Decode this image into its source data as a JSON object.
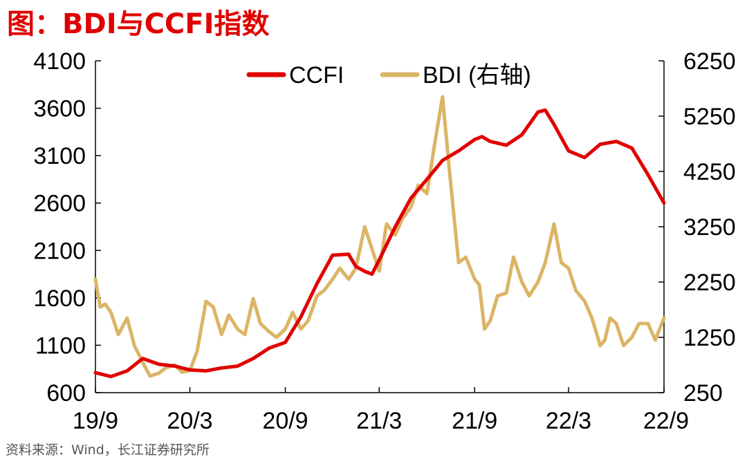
{
  "title": "图：BDI与CCFI指数",
  "source": "资料来源：Wind，长江证券研究所",
  "colors": {
    "ccfi": "#e00000",
    "bdi": "#dbb566",
    "title": "#e00000",
    "axis": "#000000"
  },
  "chart_data": {
    "type": "line",
    "title": "图：BDI与CCFI指数",
    "legend_position": "top",
    "grid": false,
    "x_ticks": [
      "19/9",
      "20/3",
      "20/9",
      "21/3",
      "21/9",
      "22/3",
      "22/9"
    ],
    "xlim": [
      "2019-09",
      "2022-09"
    ],
    "y_left": {
      "lim": [
        600,
        4100
      ],
      "ticks": [
        600,
        1100,
        1600,
        2100,
        2600,
        3100,
        3600,
        4100
      ]
    },
    "y_right": {
      "lim": [
        250,
        6250
      ],
      "ticks": [
        250,
        1250,
        2250,
        3250,
        4250,
        5250,
        6250
      ]
    },
    "series": [
      {
        "name": "CCFI",
        "axis": "left",
        "x": [
          "2019-09-01",
          "2019-10-01",
          "2019-11-01",
          "2019-12-01",
          "2020-01-01",
          "2020-02-01",
          "2020-03-01",
          "2020-04-01",
          "2020-05-01",
          "2020-06-01",
          "2020-07-01",
          "2020-08-01",
          "2020-09-01",
          "2020-10-01",
          "2020-11-01",
          "2020-12-01",
          "2021-01-01",
          "2021-01-15",
          "2021-02-01",
          "2021-02-15",
          "2021-03-01",
          "2021-04-01",
          "2021-05-01",
          "2021-06-01",
          "2021-07-01",
          "2021-08-01",
          "2021-09-01",
          "2021-09-15",
          "2021-10-01",
          "2021-11-01",
          "2021-12-01",
          "2022-01-01",
          "2022-01-15",
          "2022-02-01",
          "2022-03-01",
          "2022-04-01",
          "2022-05-01",
          "2022-06-01",
          "2022-07-01",
          "2022-08-01",
          "2022-09-01"
        ],
        "y": [
          810,
          770,
          830,
          960,
          900,
          880,
          840,
          830,
          860,
          880,
          960,
          1070,
          1130,
          1400,
          1750,
          2050,
          2060,
          1930,
          1880,
          1850,
          2000,
          2350,
          2650,
          2850,
          3050,
          3150,
          3270,
          3300,
          3250,
          3210,
          3320,
          3560,
          3580,
          3430,
          3150,
          3080,
          3220,
          3250,
          3180,
          2900,
          2600
        ]
      },
      {
        "name": "BDI (右轴)",
        "axis": "right",
        "x": [
          "2019-09-01",
          "2019-09-10",
          "2019-09-20",
          "2019-10-01",
          "2019-10-15",
          "2019-11-01",
          "2019-11-15",
          "2019-12-01",
          "2019-12-15",
          "2020-01-01",
          "2020-01-15",
          "2020-02-01",
          "2020-02-15",
          "2020-03-01",
          "2020-03-15",
          "2020-04-01",
          "2020-04-15",
          "2020-05-01",
          "2020-05-15",
          "2020-06-01",
          "2020-06-15",
          "2020-07-01",
          "2020-07-15",
          "2020-08-01",
          "2020-08-15",
          "2020-09-01",
          "2020-09-15",
          "2020-10-01",
          "2020-10-15",
          "2020-11-01",
          "2020-11-15",
          "2020-12-01",
          "2020-12-15",
          "2021-01-01",
          "2021-01-15",
          "2021-02-01",
          "2021-02-15",
          "2021-03-01",
          "2021-03-15",
          "2021-04-01",
          "2021-04-15",
          "2021-05-01",
          "2021-05-15",
          "2021-06-01",
          "2021-06-15",
          "2021-07-01",
          "2021-07-15",
          "2021-08-01",
          "2021-08-15",
          "2021-09-01",
          "2021-09-10",
          "2021-09-20",
          "2021-10-01",
          "2021-10-15",
          "2021-11-01",
          "2021-11-15",
          "2021-12-01",
          "2021-12-15",
          "2022-01-01",
          "2022-01-15",
          "2022-02-01",
          "2022-02-15",
          "2022-03-01",
          "2022-03-15",
          "2022-04-01",
          "2022-04-15",
          "2022-05-01",
          "2022-05-10",
          "2022-05-20",
          "2022-06-01",
          "2022-06-15",
          "2022-07-01",
          "2022-07-15",
          "2022-08-01",
          "2022-08-15",
          "2022-09-01"
        ],
        "y": [
          2300,
          1800,
          1850,
          1700,
          1300,
          1600,
          1100,
          800,
          550,
          600,
          700,
          750,
          620,
          650,
          1000,
          1900,
          1800,
          1300,
          1650,
          1400,
          1300,
          1950,
          1500,
          1350,
          1250,
          1400,
          1700,
          1400,
          1550,
          2000,
          2100,
          2300,
          2500,
          2300,
          2500,
          3250,
          2850,
          2450,
          3300,
          3100,
          3400,
          3600,
          4000,
          3850,
          4700,
          5600,
          4200,
          2600,
          2700,
          2300,
          2200,
          1400,
          1550,
          2000,
          2050,
          2700,
          2250,
          2000,
          2250,
          2600,
          3300,
          2600,
          2500,
          2100,
          1900,
          1600,
          1100,
          1200,
          1600,
          1500,
          1100,
          1250,
          1500,
          1500,
          1200,
          1600
        ]
      }
    ]
  }
}
